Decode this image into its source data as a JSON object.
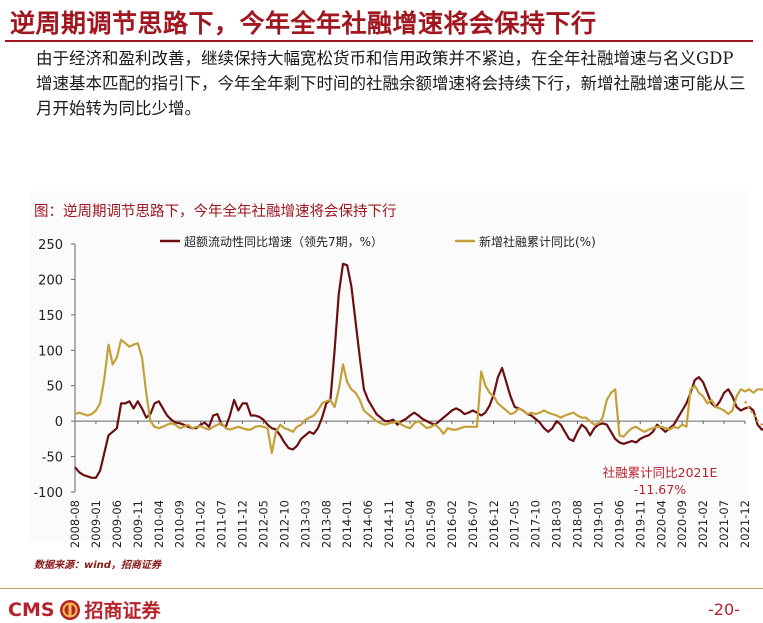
{
  "header": {
    "title": "逆周期调节思路下，今年全年社融增速将会保持下行",
    "body": "由于经济和盈利改善，继续保持大幅宽松货币和信用政策并不紧迫，在全年社融增速与名义GDP增速基本匹配的指引下，今年全年剩下时间的社融余额增速将会持续下行，新增社融增速可能从三月开始转为同比少增。"
  },
  "figure": {
    "caption": "图：逆周期调节思路下，今年全年社融增速将会保持下行",
    "source": "数据来源：wind，招商证券"
  },
  "footer": {
    "logo_text": "CMS",
    "logo_cn": "招商证券",
    "page_number": "-20-"
  },
  "colors": {
    "brand": "#a0171f",
    "series1": "#6b0f12",
    "series2": "#c4a03a",
    "annotation": "#b7232c"
  },
  "chart_data": {
    "type": "line",
    "title": "",
    "xlabel": "",
    "ylabel": "",
    "ylim": [
      -100,
      250
    ],
    "yticks": [
      "250",
      "200",
      "150",
      "100",
      "50",
      "0",
      "-50",
      "-100"
    ],
    "grid": false,
    "legend_position": "top",
    "x_tick_labels": [
      "2008-08",
      "2009-01",
      "2009-06",
      "2009-11",
      "2010-04",
      "2010-09",
      "2011-02",
      "2011-07",
      "2011-12",
      "2012-05",
      "2012-10",
      "2013-03",
      "2013-08",
      "2014-01",
      "2014-06",
      "2014-11",
      "2015-04",
      "2015-09",
      "2016-02",
      "2016-07",
      "2016-12",
      "2017-05",
      "2017-10",
      "2018-03",
      "2018-08",
      "2019-01",
      "2019-06",
      "2019-11",
      "2020-04",
      "2020-09",
      "2021-02",
      "2021-07",
      "2021-12"
    ],
    "x_start": "2008-08",
    "x_step_months": 1,
    "annotation": {
      "line1": "社融累计同比2021E",
      "line2": "-11.67%"
    },
    "series": [
      {
        "name": "超额流动性同比增速（领先7期，%）",
        "color": "#6b0f12",
        "style": "solid",
        "values": [
          -65,
          -72,
          -76,
          -78,
          -80,
          -80,
          -70,
          -45,
          -20,
          -15,
          -10,
          25,
          25,
          28,
          18,
          28,
          18,
          5,
          10,
          25,
          28,
          18,
          8,
          2,
          -2,
          -3,
          -5,
          -8,
          -10,
          -10,
          -5,
          -2,
          -8,
          8,
          10,
          -5,
          -8,
          8,
          30,
          15,
          25,
          25,
          8,
          8,
          6,
          2,
          -5,
          -10,
          -12,
          -20,
          -30,
          -38,
          -40,
          -35,
          -25,
          -20,
          -15,
          -18,
          -10,
          5,
          25,
          30,
          100,
          180,
          222,
          220,
          190,
          140,
          90,
          45,
          30,
          20,
          10,
          5,
          0,
          0,
          2,
          -5,
          0,
          3,
          8,
          12,
          8,
          3,
          0,
          -3,
          -5,
          0,
          5,
          10,
          15,
          18,
          15,
          10,
          12,
          15,
          12,
          8,
          12,
          22,
          38,
          62,
          75,
          55,
          35,
          20,
          18,
          15,
          10,
          8,
          3,
          -2,
          -10,
          -15,
          -10,
          0,
          -5,
          -15,
          -25,
          -28,
          -15,
          -5,
          -10,
          -20,
          -10,
          -5,
          -3,
          -5,
          -15,
          -25,
          -30,
          -32,
          -30,
          -28,
          -30,
          -25,
          -22,
          -20,
          -15,
          -5,
          -10,
          -15,
          -10,
          -5,
          5,
          15,
          25,
          40,
          58,
          62,
          55,
          40,
          25,
          20,
          28,
          40,
          45,
          35,
          20,
          15,
          18,
          20,
          15,
          -5,
          -12,
          -10,
          0,
          5,
          10,
          12,
          10,
          8,
          5,
          10,
          20,
          30,
          40,
          45,
          35,
          15,
          0,
          -5,
          -3,
          -1,
          -8,
          -4,
          -2,
          0
        ]
      },
      {
        "name": "新增社融累计同比(%)",
        "color": "#c4a03a",
        "style": "solid",
        "values": [
          10,
          12,
          10,
          8,
          10,
          15,
          25,
          60,
          108,
          80,
          90,
          115,
          110,
          105,
          108,
          110,
          90,
          40,
          0,
          -8,
          -10,
          -8,
          -5,
          -3,
          -5,
          -10,
          -8,
          -5,
          -10,
          -8,
          -7,
          -10,
          -12,
          -8,
          -5,
          -3,
          -10,
          -12,
          -10,
          -8,
          -10,
          -12,
          -12,
          -8,
          -7,
          -8,
          -10,
          -45,
          -15,
          -5,
          -10,
          -12,
          -15,
          -8,
          -5,
          2,
          5,
          8,
          15,
          25,
          28,
          30,
          20,
          45,
          80,
          55,
          45,
          40,
          30,
          15,
          10,
          5,
          0,
          -3,
          -5,
          -3,
          -2,
          0,
          -5,
          -8,
          -10,
          -3,
          0,
          -5,
          -10,
          -8,
          -5,
          -10,
          -18,
          -10,
          -12,
          -12,
          -10,
          -8,
          -8,
          -8,
          -8,
          70,
          50,
          40,
          35,
          25,
          20,
          15,
          10,
          12,
          18,
          15,
          10,
          12,
          10,
          12,
          15,
          12,
          10,
          8,
          5,
          8,
          10,
          12,
          8,
          5,
          5,
          0,
          -5,
          -3,
          5,
          30,
          40,
          45,
          -20,
          -22,
          -15,
          -10,
          -8,
          -12,
          -15,
          -12,
          -10,
          -8,
          -8,
          -10,
          -12,
          -8,
          -10,
          -5,
          -8,
          45,
          50,
          40,
          35,
          25,
          30,
          20,
          18,
          15,
          10,
          15,
          35,
          45,
          42,
          45,
          40,
          45,
          45,
          42,
          45,
          45,
          40,
          28
        ]
      },
      {
        "name": "",
        "color": "#c4a03a",
        "style": "dotted",
        "start_index": 160,
        "values": [
          28,
          18,
          10,
          0,
          -5,
          -8,
          -10,
          -11.67,
          -11.67,
          -11.67,
          -11.67,
          -11.67,
          -11.67
        ]
      }
    ]
  }
}
